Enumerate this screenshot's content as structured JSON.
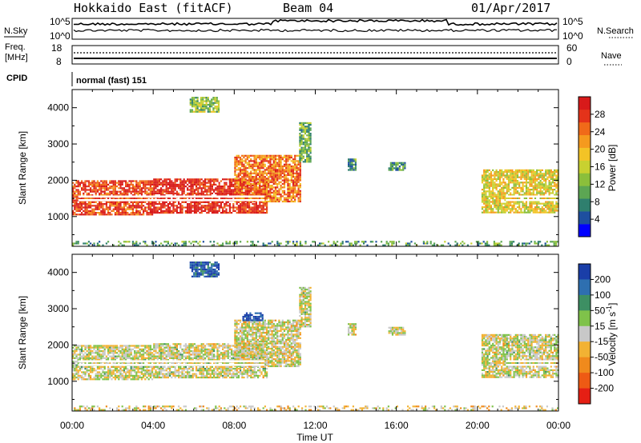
{
  "header": {
    "station": "Hokkaido East (fitACF)",
    "beam": "Beam 04",
    "date": "01/Apr/2017"
  },
  "top_panels": {
    "noise_sky_label": "N.Sky",
    "noise_search_label": "N.Search",
    "noise_ticks": [
      "10^5",
      "10^0"
    ],
    "freq_label": "Freq.",
    "freq_unit": "[MHz]",
    "freq_ticks": [
      "18",
      "8"
    ],
    "nave_label": "Nave",
    "nave_ticks": [
      "60",
      "0"
    ],
    "cpid_label": "CPID",
    "cpid_value": "normal (fast) 151"
  },
  "chart_data": [
    {
      "type": "heatmap",
      "name": "power-panel",
      "ylabel": "Slant Range [km]",
      "xlabel": "",
      "x_unit": "hours UT",
      "xlim": [
        0,
        24
      ],
      "ylim": [
        180,
        4500
      ],
      "yticks": [
        1000,
        2000,
        3000,
        4000
      ],
      "colorbar": {
        "label": "Power [dB]",
        "ticks": [
          4,
          8,
          12,
          16,
          20,
          24,
          28
        ],
        "colors": [
          "#0000ff",
          "#1e4f9f",
          "#2f7f6e",
          "#5ca653",
          "#8bbf3b",
          "#c8d130",
          "#f3c326",
          "#f59a1e",
          "#f06a19",
          "#e4331a",
          "#d81a1a"
        ]
      },
      "regions": [
        {
          "t": [
            0.0,
            4.0
          ],
          "r": [
            1050,
            2000
          ],
          "level": 0.86
        },
        {
          "t": [
            4.0,
            9.6
          ],
          "r": [
            1100,
            2050
          ],
          "level": 0.92
        },
        {
          "t": [
            8.0,
            11.3
          ],
          "r": [
            1400,
            2700
          ],
          "level": 0.75
        },
        {
          "t": [
            11.2,
            11.8
          ],
          "r": [
            2500,
            3600
          ],
          "level": 0.35
        },
        {
          "t": [
            13.6,
            14.0
          ],
          "r": [
            2300,
            2600
          ],
          "level": 0.3
        },
        {
          "t": [
            15.6,
            16.4
          ],
          "r": [
            2300,
            2500
          ],
          "level": 0.3
        },
        {
          "t": [
            20.2,
            24.0
          ],
          "r": [
            1100,
            2300
          ],
          "level": 0.55
        },
        {
          "t": [
            5.8,
            7.2
          ],
          "r": [
            3900,
            4300
          ],
          "level": 0.4
        },
        {
          "t": [
            0.0,
            24.0
          ],
          "r": [
            200,
            330
          ],
          "level": 0.3
        }
      ]
    },
    {
      "type": "heatmap",
      "name": "velocity-panel",
      "ylabel": "Slant Range [km]",
      "xlabel": "Time UT",
      "x_unit": "hours UT",
      "xlim": [
        0,
        24
      ],
      "ylim": [
        180,
        4500
      ],
      "yticks": [
        1000,
        2000,
        3000,
        4000
      ],
      "xticks": [
        "00:00",
        "04:00",
        "08:00",
        "12:00",
        "16:00",
        "20:00",
        "00:00"
      ],
      "colorbar": {
        "label": "Velocity [m s^-1]",
        "ticks": [
          "200",
          "100",
          "50",
          "15",
          "-15",
          "-50",
          "-100",
          "-200"
        ],
        "colors": [
          "#1a3ea8",
          "#2e6fb0",
          "#3d8f63",
          "#7fc24a",
          "#c8c8c8",
          "#f2b233",
          "#f08a1c",
          "#ee5a14",
          "#e51f14"
        ]
      },
      "regions": [
        {
          "t": [
            0.0,
            4.0
          ],
          "r": [
            1050,
            2000
          ],
          "level": 0.5
        },
        {
          "t": [
            4.0,
            9.6
          ],
          "r": [
            1100,
            2050
          ],
          "level": 0.5
        },
        {
          "t": [
            8.0,
            11.3
          ],
          "r": [
            1400,
            2700
          ],
          "level": 0.52
        },
        {
          "t": [
            11.2,
            11.8
          ],
          "r": [
            2500,
            3600
          ],
          "level": 0.5
        },
        {
          "t": [
            13.6,
            14.0
          ],
          "r": [
            2300,
            2600
          ],
          "level": 0.5
        },
        {
          "t": [
            15.6,
            16.4
          ],
          "r": [
            2300,
            2500
          ],
          "level": 0.5
        },
        {
          "t": [
            20.2,
            24.0
          ],
          "r": [
            1100,
            2300
          ],
          "level": 0.5
        },
        {
          "t": [
            5.8,
            7.2
          ],
          "r": [
            3900,
            4300
          ],
          "level": 0.1
        },
        {
          "t": [
            8.4,
            9.4
          ],
          "r": [
            2700,
            2900
          ],
          "level": 0.05
        },
        {
          "t": [
            0.0,
            24.0
          ],
          "r": [
            200,
            330
          ],
          "level": 0.55
        }
      ]
    }
  ]
}
